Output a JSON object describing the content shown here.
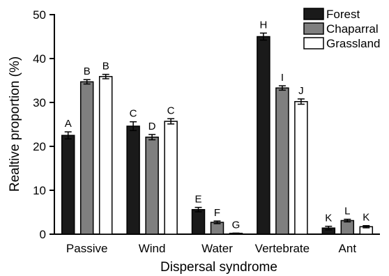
{
  "chart_data": {
    "type": "bar",
    "title": "",
    "xlabel": "Dispersal syndrome",
    "ylabel": "Realtive proportion (%)",
    "ylim": [
      0,
      50
    ],
    "yticks": [
      "0",
      "10",
      "20",
      "30",
      "40",
      "50"
    ],
    "categories": [
      "Passive",
      "Wind",
      "Water",
      "Vertebrate",
      "Ant"
    ],
    "legend_position": "top-right",
    "grid": false,
    "series": [
      {
        "name": "Forest",
        "color": "#1a1a1a",
        "values": [
          22.5,
          24.6,
          5.6,
          45.0,
          1.4
        ],
        "errors": [
          0.8,
          1.0,
          0.5,
          0.8,
          0.4
        ],
        "letters": [
          "A",
          "C",
          "E",
          "H",
          "K"
        ]
      },
      {
        "name": "Chaparral",
        "color": "#7f7f7f",
        "values": [
          34.7,
          22.1,
          2.7,
          33.3,
          3.1
        ],
        "errors": [
          0.5,
          0.6,
          0.3,
          0.5,
          0.3
        ],
        "letters": [
          "B",
          "D",
          "F",
          "I",
          "L"
        ]
      },
      {
        "name": "Grassland",
        "color": "#ffffff",
        "values": [
          35.9,
          25.7,
          0.2,
          30.2,
          1.7
        ],
        "errors": [
          0.5,
          0.6,
          0.05,
          0.6,
          0.25
        ],
        "letters": [
          "B",
          "C",
          "G",
          "J",
          "K"
        ]
      }
    ]
  }
}
